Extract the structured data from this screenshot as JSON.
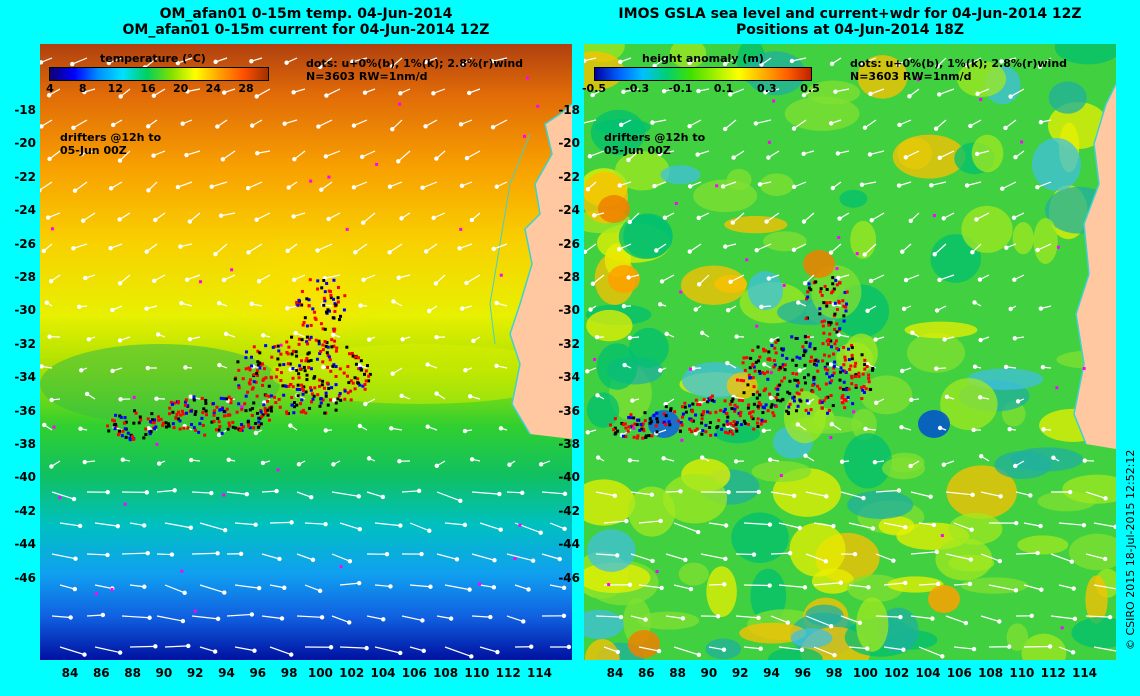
{
  "left": {
    "title_line1": "OM_afan01 0-15m temp. 04-Jun-2014",
    "title_line2": "OM_afan01 0-15m current for 04-Jun-2014 12Z",
    "colorbar_title": "temperature (°C)",
    "colorbar_ticks": [
      "4",
      "8",
      "12",
      "16",
      "20",
      "24",
      "28"
    ],
    "colorbar_colors": [
      "#100070",
      "#0000ff",
      "#0090ff",
      "#00e0ff",
      "#00d060",
      "#80e000",
      "#ffff00",
      "#ffa000",
      "#ff5000",
      "#a03000"
    ],
    "dots_line1": "dots: u+0%(b), 1%(k); 2.8%(r)wind",
    "dots_line2": "N=3603 RW=1nm/d",
    "drifters_line1": "drifters @12h to",
    "drifters_line2": "05-Jun 00Z"
  },
  "right": {
    "title_line1": "IMOS GSLA sea level and current+wdr for 04-Jun-2014 12Z",
    "title_line2": "Positions at 04-Jun-2014 18Z",
    "colorbar_title": "height anomaly (m)",
    "colorbar_ticks": [
      "-0.5",
      "-0.3",
      "-0.1",
      "0.1",
      "0.3",
      "0.5"
    ],
    "colorbar_colors": [
      "#0000a0",
      "#0060ff",
      "#00c0ff",
      "#00d070",
      "#40e000",
      "#a0f000",
      "#ffff00",
      "#ffb000",
      "#ff6000",
      "#c02000"
    ],
    "dots_line1": "dots: u+0%(b), 1%(k); 2.8%(r)wind",
    "dots_line2": "N=3603 RW=1nm/d",
    "drifters_line1": "drifters @12h to",
    "drifters_line2": "05-Jun 00Z"
  },
  "axes": {
    "y_ticks": [
      "-18",
      "-20",
      "-22",
      "-24",
      "-26",
      "-28",
      "-30",
      "-32",
      "-34",
      "-36",
      "-38",
      "-40",
      "-42",
      "-44",
      "-46"
    ],
    "x_ticks": [
      "84",
      "86",
      "88",
      "90",
      "92",
      "94",
      "96",
      "98",
      "100",
      "102",
      "104",
      "106",
      "108",
      "110",
      "112",
      "114"
    ]
  },
  "colors": {
    "background": "#00ffff",
    "land": "#ffc8a0",
    "coast": "#40d0d0"
  },
  "credit": "© CSIRO 2015   18-Jul-2015 12:52:12"
}
